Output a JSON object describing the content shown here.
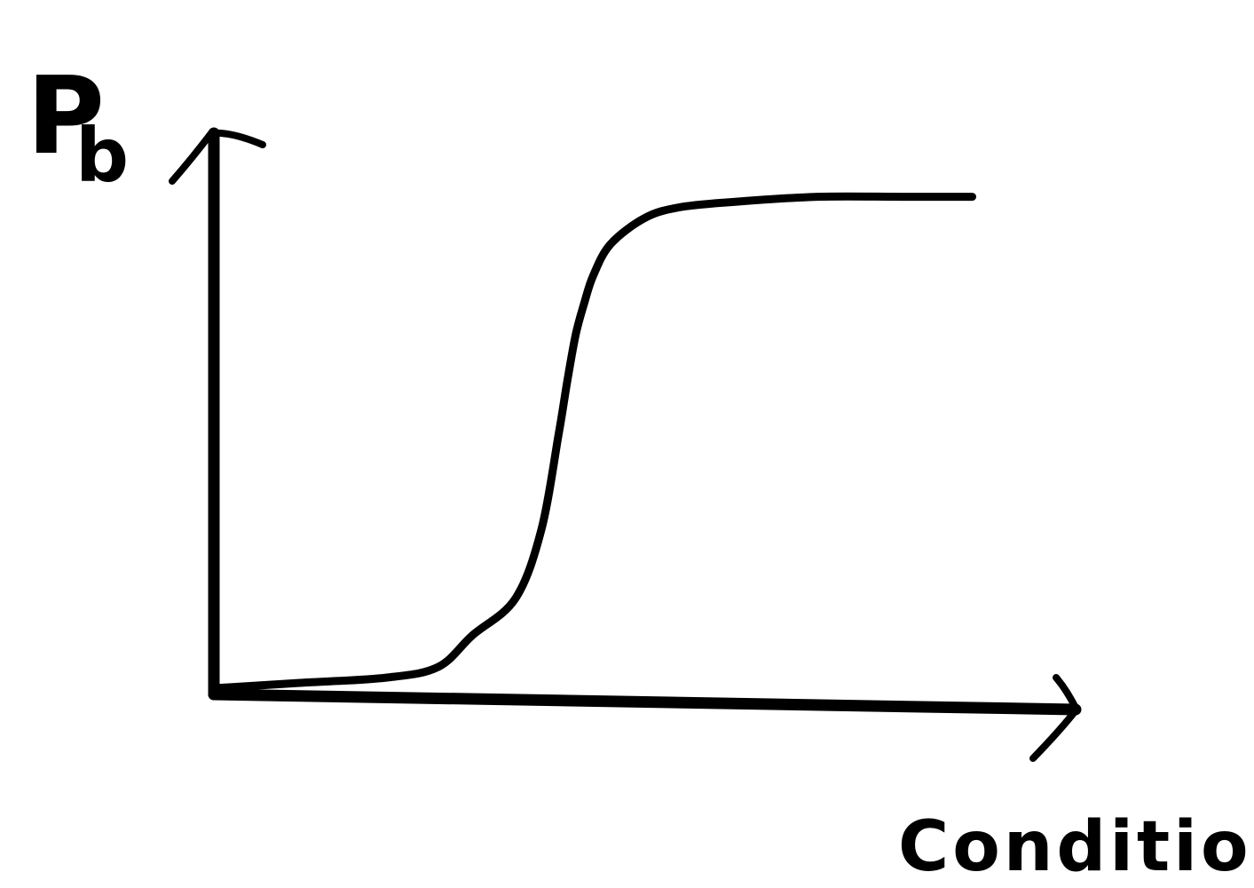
{
  "chart_data": {
    "type": "line",
    "style": "hand-drawn sketch",
    "ylabel_main": "P",
    "ylabel_sub": "b",
    "xlabel": "Condition",
    "tick_labels": [],
    "grid": false,
    "legend": "none",
    "ink_color": "#000000",
    "background_color": "#ffffff",
    "xlim": [
      0,
      1
    ],
    "ylim": [
      0,
      1
    ],
    "series": [
      {
        "shape": "sigmoid",
        "x": [
          0.0,
          0.1,
          0.2,
          0.26,
          0.3,
          0.35,
          0.38,
          0.4,
          0.41,
          0.42,
          0.43,
          0.44,
          0.46,
          0.5,
          0.54,
          0.6,
          0.7,
          0.8,
          0.88
        ],
        "y": [
          0.0,
          0.01,
          0.02,
          0.04,
          0.1,
          0.17,
          0.3,
          0.48,
          0.58,
          0.67,
          0.73,
          0.78,
          0.84,
          0.89,
          0.91,
          0.92,
          0.93,
          0.93,
          0.93
        ]
      }
    ]
  }
}
